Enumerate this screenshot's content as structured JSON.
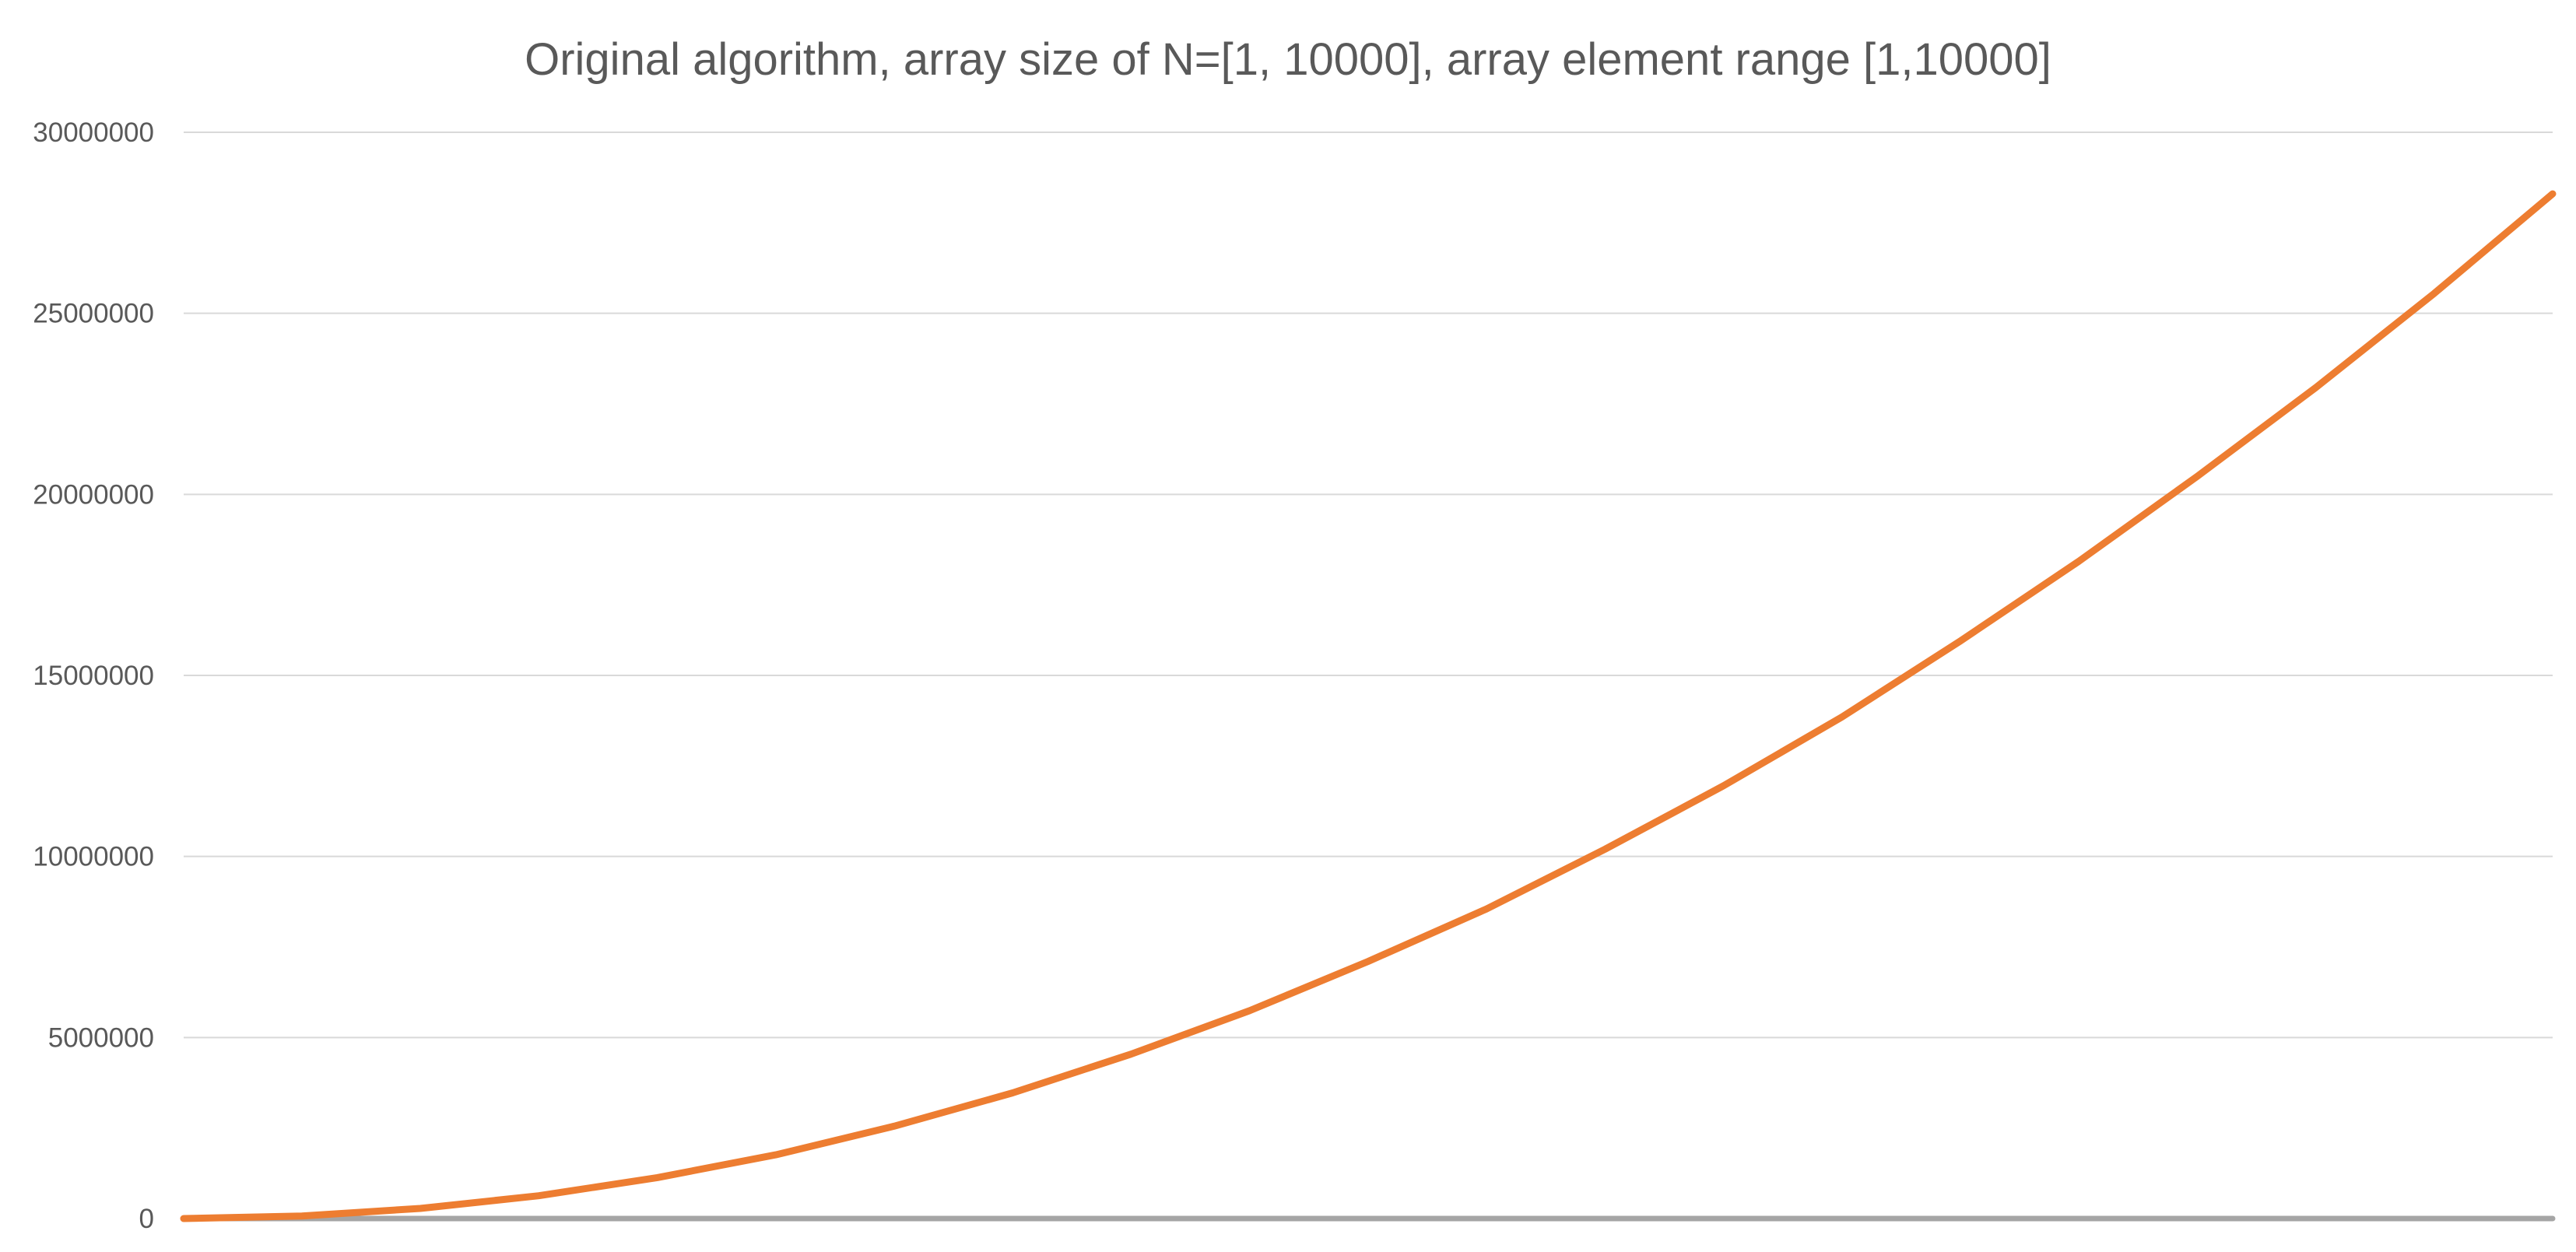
{
  "chart_data": {
    "type": "line",
    "title": "Original algorithm, array size of N=[1, 10000], array element range [1,10000]",
    "xlabel": "",
    "ylabel": "",
    "xlim": [
      1,
      10000
    ],
    "ylim": [
      0,
      30000000
    ],
    "yticks": [
      "0",
      "5000000",
      "10000000",
      "15000000",
      "20000000",
      "25000000",
      "30000000"
    ],
    "xticks": [],
    "grid": true,
    "legend": "none",
    "series": [
      {
        "color": "#ED7D31",
        "x": [
          1,
          500,
          1000,
          1500,
          2000,
          2500,
          3000,
          3500,
          4000,
          4500,
          5000,
          5500,
          6000,
          6500,
          7000,
          7500,
          8000,
          8500,
          9000,
          9500,
          10000
        ],
        "y": [
          0,
          70000,
          280000,
          630000,
          1130000,
          1760000,
          2550000,
          3470000,
          4540000,
          5740000,
          7100000,
          8550000,
          10200000,
          11950000,
          13850000,
          15950000,
          18150000,
          20500000,
          22950000,
          25550000,
          28300000
        ]
      },
      {
        "color": "#A5A5A5",
        "x": [
          1,
          10000
        ],
        "y": [
          0,
          0
        ]
      }
    ]
  }
}
